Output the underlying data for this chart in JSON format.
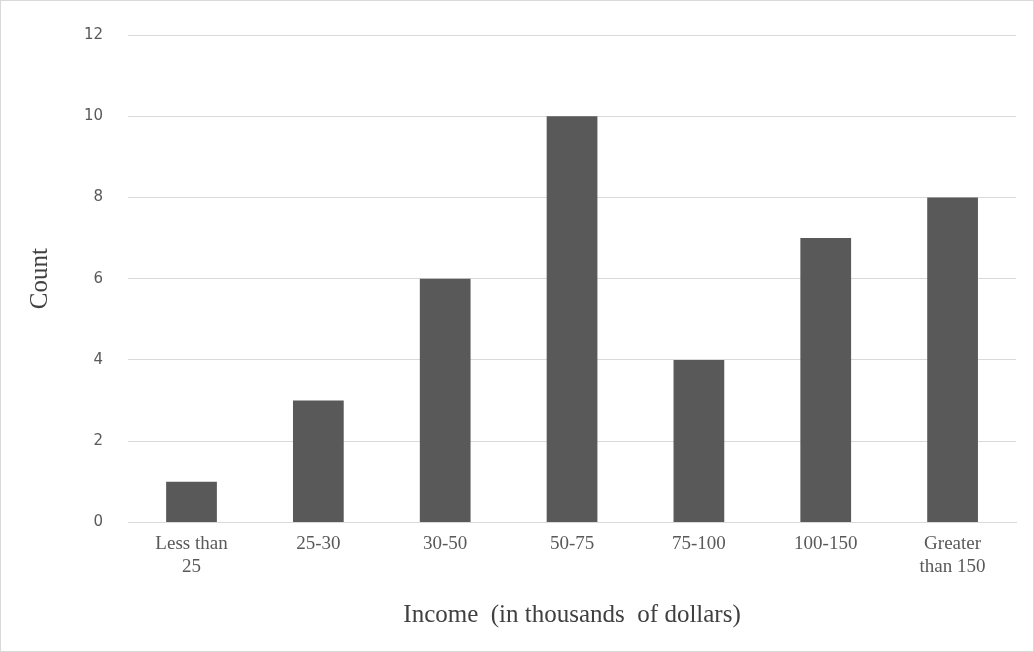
{
  "chart_data": {
    "type": "bar",
    "xlabel": "Income  (in thousands  of dollars)",
    "ylabel": "Count",
    "categories": [
      "Less than 25",
      "25-30",
      "30-50",
      "50-75",
      "75-100",
      "100-150",
      "Greater than 150"
    ],
    "values": [
      1,
      3,
      6,
      10,
      4,
      7,
      8
    ],
    "color": "#595959",
    "ylim": [
      0,
      12
    ],
    "yticks": [
      0,
      2,
      4,
      6,
      8,
      10,
      12
    ],
    "grid": "y",
    "legend": false
  }
}
